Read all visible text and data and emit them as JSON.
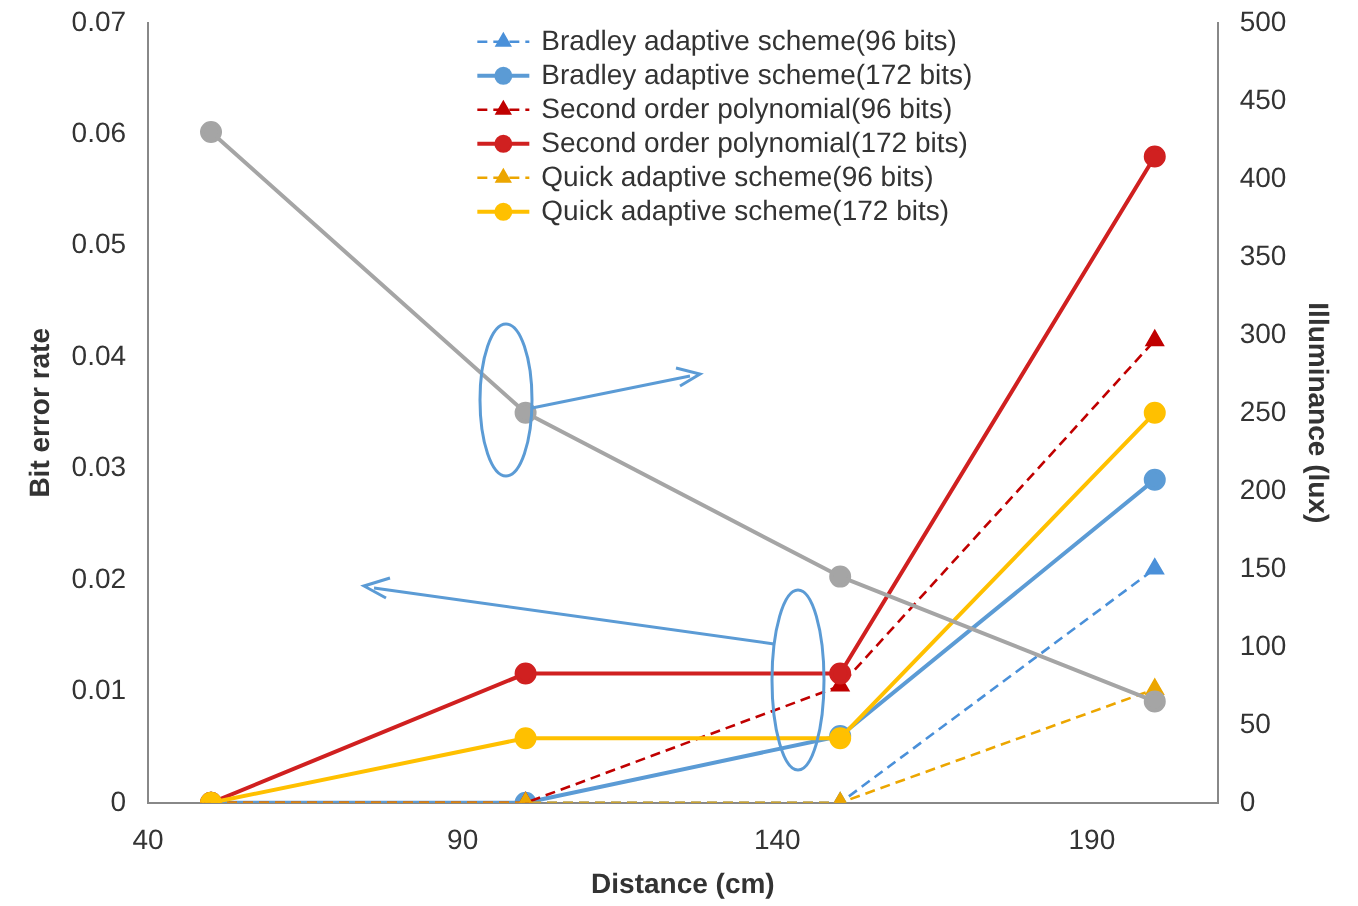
{
  "chart_data": {
    "type": "line",
    "xlabel": "Distance (cm)",
    "ylabel": "Bit error rate",
    "y2label": "Illuminance (lux)",
    "x": [
      50,
      100,
      150,
      200
    ],
    "xlim": [
      40,
      210
    ],
    "xticks": [
      40,
      90,
      140,
      190
    ],
    "ylim": [
      0,
      0.07
    ],
    "yticks": [
      0,
      0.01,
      0.02,
      0.03,
      0.04,
      0.05,
      0.06,
      0.07
    ],
    "y2lim": [
      0,
      500
    ],
    "y2ticks": [
      0,
      50,
      100,
      150,
      200,
      250,
      300,
      350,
      400,
      450,
      500
    ],
    "grid": false,
    "legend": "top",
    "series": [
      {
        "name": "Bradley adaptive scheme(96 bits)",
        "color": "#4a90d9",
        "values": [
          0,
          0,
          0,
          0.021
        ],
        "marker": "triangle",
        "line_style": "dashed"
      },
      {
        "name": "Bradley adaptive scheme(172 bits)",
        "color": "#5b9bd5",
        "values": [
          0,
          0,
          0.006,
          0.029
        ],
        "marker": "circle",
        "line_style": "solid"
      },
      {
        "name": "Second order polynomial(96 bits)",
        "color": "#c00000",
        "values": [
          0,
          0,
          0.0105,
          0.0415
        ],
        "marker": "triangle",
        "line_style": "dashed"
      },
      {
        "name": "Second order polynomial(172 bits)",
        "color": "#d02020",
        "values": [
          0,
          0.0116,
          0.0116,
          0.058
        ],
        "marker": "circle",
        "line_style": "solid"
      },
      {
        "name": "Quick adaptive scheme(96 bits)",
        "color": "#eca600",
        "values": [
          0,
          0,
          0,
          0.0102
        ],
        "marker": "triangle",
        "line_style": "dashed"
      },
      {
        "name": "Quick adaptive scheme(172 bits)",
        "color": "#ffc000",
        "values": [
          0,
          0.0058,
          0.0058,
          0.035
        ],
        "marker": "circle",
        "line_style": "solid"
      },
      {
        "color": "#a5a5a5",
        "values": [
          430,
          250,
          145,
          65
        ],
        "axis": "y2",
        "marker": "circle",
        "line_style": "solid"
      }
    ]
  }
}
